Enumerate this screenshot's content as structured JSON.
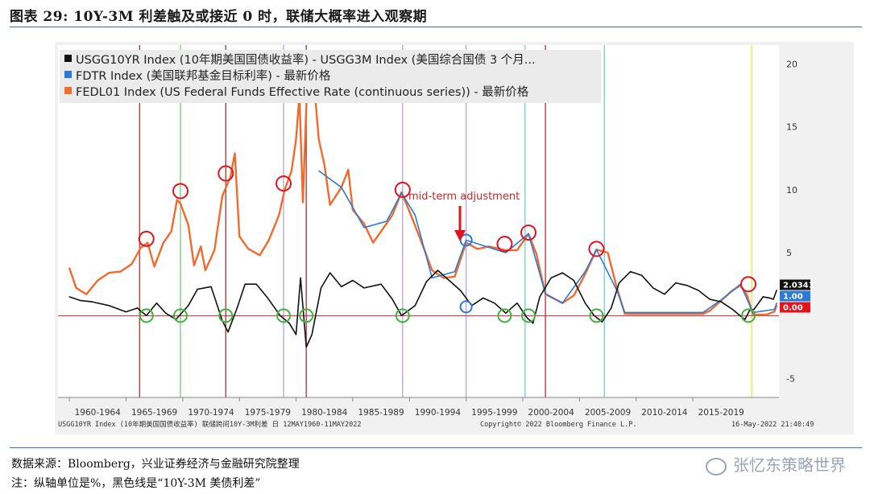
{
  "figure": {
    "title": "图表 29:    10Y-3M 利差触及或接近 0 时，联储大概率进入观察期",
    "source": "数据来源：Bloomberg，兴业证券经济与金融研究院整理",
    "note": "注：纵轴单位是%，黑色线是“10Y-3M 美债利差”",
    "watermark": "张忆东策略世界"
  },
  "chart_data": {
    "type": "line",
    "legend": [
      {
        "label": "USGG10YR Index (10年期美国国债收益率) - USGG3M Index (美国综合国债 3 个月...",
        "color": "#111111"
      },
      {
        "label": "FDTR Index (美国联邦基金目标利率) - 最新价格",
        "color": "#2b7bd6"
      },
      {
        "label": "FEDL01 Index (US Federal Funds Effective Rate (continuous series)) - 最新价格",
        "color": "#f26a2e"
      }
    ],
    "yticks": [
      20,
      15,
      10,
      5,
      -5
    ],
    "ylim": [
      -6.5,
      21.5
    ],
    "xlim": [
      1959.0,
      2022.6
    ],
    "xtick_labels": [
      "1960-1964",
      "1965-1969",
      "1970-1974",
      "1975-1979",
      "1980-1984",
      "1985-1989",
      "1990-1994",
      "1995-1999",
      "2000-2004",
      "2005-2009",
      "2010-2014",
      "2015-2019"
    ],
    "last_values": [
      {
        "text": "2.0341",
        "color": "#111111",
        "value": 2.0341
      },
      {
        "text": "1.00",
        "color": "#2b7bd6",
        "value": 1.0
      },
      {
        "text": "0.00",
        "color": "#e0141e",
        "value": 0.0
      }
    ],
    "annotation": "mid-term adjustment",
    "footer_left": "USGG10YR Index (10年期美国国债收益率) 联储跨间10Y-3M利差  日  12MAY1960-11MAY2022",
    "footer_center": "Copyright© 2022 Bloomberg Finance L.P.",
    "footer_right": "16-May-2022  21:40:49",
    "series": [
      {
        "name": "FEDL01",
        "color": "#f26a2e",
        "points": [
          [
            1960.0,
            3.8
          ],
          [
            1960.6,
            2.2
          ],
          [
            1961.5,
            1.7
          ],
          [
            1962.5,
            2.8
          ],
          [
            1963.5,
            3.4
          ],
          [
            1964.5,
            3.5
          ],
          [
            1965.5,
            4.1
          ],
          [
            1966.3,
            5.4
          ],
          [
            1966.9,
            5.8
          ],
          [
            1967.5,
            3.9
          ],
          [
            1968.3,
            5.8
          ],
          [
            1969.0,
            6.7
          ],
          [
            1969.5,
            9.2
          ],
          [
            1969.8,
            8.9
          ],
          [
            1970.5,
            7.2
          ],
          [
            1971.0,
            4.0
          ],
          [
            1971.6,
            5.5
          ],
          [
            1972.0,
            3.6
          ],
          [
            1972.8,
            5.2
          ],
          [
            1973.5,
            9.5
          ],
          [
            1974.2,
            11.0
          ],
          [
            1974.6,
            12.9
          ],
          [
            1975.0,
            6.3
          ],
          [
            1975.8,
            5.3
          ],
          [
            1976.8,
            4.8
          ],
          [
            1977.6,
            6.0
          ],
          [
            1978.5,
            8.0
          ],
          [
            1979.0,
            10.0
          ],
          [
            1979.6,
            11.5
          ],
          [
            1980.0,
            14.0
          ],
          [
            1980.3,
            17.5
          ],
          [
            1980.6,
            9.0
          ],
          [
            1981.0,
            19.0
          ],
          [
            1981.5,
            19.5
          ],
          [
            1982.0,
            14.0
          ],
          [
            1982.5,
            12.0
          ],
          [
            1983.0,
            8.8
          ],
          [
            1984.0,
            10.2
          ],
          [
            1984.6,
            11.6
          ],
          [
            1985.0,
            8.4
          ],
          [
            1986.0,
            7.3
          ],
          [
            1986.8,
            5.8
          ],
          [
            1987.5,
            6.7
          ],
          [
            1988.5,
            8.0
          ],
          [
            1989.3,
            9.8
          ],
          [
            1990.0,
            8.3
          ],
          [
            1991.0,
            6.0
          ],
          [
            1992.0,
            3.6
          ],
          [
            1993.0,
            3.0
          ],
          [
            1994.0,
            3.1
          ],
          [
            1995.0,
            5.8
          ],
          [
            1996.0,
            5.3
          ],
          [
            1997.0,
            5.5
          ],
          [
            1998.5,
            5.2
          ],
          [
            1999.5,
            5.2
          ],
          [
            2000.5,
            6.5
          ],
          [
            2001.2,
            4.9
          ],
          [
            2002.0,
            1.7
          ],
          [
            2003.5,
            1.0
          ],
          [
            2004.5,
            1.6
          ],
          [
            2005.5,
            3.3
          ],
          [
            2006.5,
            5.25
          ],
          [
            2007.5,
            5.0
          ],
          [
            2008.3,
            2.2
          ],
          [
            2009.0,
            0.15
          ],
          [
            2012.0,
            0.15
          ],
          [
            2015.9,
            0.15
          ],
          [
            2016.5,
            0.4
          ],
          [
            2017.5,
            1.2
          ],
          [
            2018.5,
            2.0
          ],
          [
            2019.2,
            2.4
          ],
          [
            2019.8,
            1.6
          ],
          [
            2020.3,
            0.08
          ],
          [
            2021.5,
            0.08
          ],
          [
            2022.2,
            0.33
          ],
          [
            2022.4,
            0.83
          ]
        ]
      },
      {
        "name": "FDTR",
        "color": "#2b7bd6",
        "points": [
          [
            1982.0,
            11.5
          ],
          [
            1984.0,
            10.2
          ],
          [
            1986.0,
            7.0
          ],
          [
            1988.0,
            7.5
          ],
          [
            1989.3,
            9.75
          ],
          [
            1990.5,
            8.0
          ],
          [
            1992.0,
            3.0
          ],
          [
            1994.0,
            3.5
          ],
          [
            1995.0,
            6.0
          ],
          [
            1998.5,
            5.0
          ],
          [
            2000.5,
            6.5
          ],
          [
            2002.0,
            1.75
          ],
          [
            2003.5,
            1.0
          ],
          [
            2005.5,
            3.5
          ],
          [
            2006.5,
            5.25
          ],
          [
            2008.3,
            2.0
          ],
          [
            2009.0,
            0.25
          ],
          [
            2015.9,
            0.25
          ],
          [
            2017.5,
            1.25
          ],
          [
            2019.2,
            2.5
          ],
          [
            2020.3,
            0.25
          ],
          [
            2022.2,
            0.5
          ],
          [
            2022.4,
            1.0
          ]
        ]
      },
      {
        "name": "USGG10YR-USGG3M",
        "color": "#111111",
        "points": [
          [
            1960.0,
            1.5
          ],
          [
            1961.0,
            1.2
          ],
          [
            1962.0,
            1.1
          ],
          [
            1963.5,
            0.8
          ],
          [
            1965.0,
            0.3
          ],
          [
            1966.0,
            0.6
          ],
          [
            1966.8,
            0.0
          ],
          [
            1967.7,
            1.0
          ],
          [
            1968.5,
            0.2
          ],
          [
            1969.4,
            -0.3
          ],
          [
            1970.5,
            0.8
          ],
          [
            1971.3,
            2.1
          ],
          [
            1972.5,
            2.3
          ],
          [
            1973.5,
            -0.4
          ],
          [
            1974.0,
            -1.3
          ],
          [
            1974.8,
            0.6
          ],
          [
            1975.5,
            2.5
          ],
          [
            1976.5,
            2.5
          ],
          [
            1977.5,
            1.4
          ],
          [
            1978.6,
            0.0
          ],
          [
            1979.4,
            -0.6
          ],
          [
            1980.0,
            -1.5
          ],
          [
            1980.4,
            3.0
          ],
          [
            1980.9,
            -2.5
          ],
          [
            1981.4,
            -1.5
          ],
          [
            1982.2,
            2.2
          ],
          [
            1983.0,
            3.4
          ],
          [
            1984.0,
            2.3
          ],
          [
            1985.0,
            2.8
          ],
          [
            1986.0,
            2.2
          ],
          [
            1987.5,
            2.5
          ],
          [
            1988.5,
            1.3
          ],
          [
            1989.3,
            0.0
          ],
          [
            1990.5,
            0.8
          ],
          [
            1991.5,
            2.7
          ],
          [
            1992.5,
            3.6
          ],
          [
            1993.5,
            2.8
          ],
          [
            1994.5,
            2.0
          ],
          [
            1995.5,
            0.8
          ],
          [
            1996.5,
            1.4
          ],
          [
            1997.5,
            1.0
          ],
          [
            1998.5,
            0.2
          ],
          [
            1999.5,
            1.0
          ],
          [
            2000.4,
            -0.2
          ],
          [
            2000.9,
            -0.6
          ],
          [
            2001.5,
            1.5
          ],
          [
            2002.5,
            3.0
          ],
          [
            2003.5,
            3.4
          ],
          [
            2004.5,
            2.8
          ],
          [
            2005.5,
            1.0
          ],
          [
            2006.3,
            0.0
          ],
          [
            2007.0,
            -0.5
          ],
          [
            2007.8,
            0.6
          ],
          [
            2008.5,
            2.6
          ],
          [
            2009.5,
            3.5
          ],
          [
            2010.5,
            3.2
          ],
          [
            2011.5,
            2.2
          ],
          [
            2012.5,
            1.7
          ],
          [
            2013.5,
            2.6
          ],
          [
            2014.5,
            2.4
          ],
          [
            2015.5,
            2.0
          ],
          [
            2016.5,
            1.3
          ],
          [
            2017.5,
            1.1
          ],
          [
            2018.5,
            0.5
          ],
          [
            2019.3,
            -0.1
          ],
          [
            2019.6,
            -0.3
          ],
          [
            2020.0,
            0.4
          ],
          [
            2020.4,
            0.5
          ],
          [
            2021.2,
            1.5
          ],
          [
            2021.8,
            1.4
          ],
          [
            2022.1,
            1.3
          ],
          [
            2022.4,
            2.03
          ]
        ]
      }
    ],
    "vertical_lines": [
      {
        "x": 1966.2,
        "color": "#b04040"
      },
      {
        "x": 1969.8,
        "color": "#7fd37f"
      },
      {
        "x": 1973.8,
        "color": "#b04040"
      },
      {
        "x": 1978.9,
        "color": "#b9a8d8"
      },
      {
        "x": 1980.9,
        "color": "#b04040"
      },
      {
        "x": 1989.4,
        "color": "#b9a8d8"
      },
      {
        "x": 1995.0,
        "color": "#b9a8d8"
      },
      {
        "x": 2000.2,
        "color": "#7fd3c8"
      },
      {
        "x": 2002.0,
        "color": "#b04040"
      },
      {
        "x": 2007.2,
        "color": "#7fd3c8"
      },
      {
        "x": 2020.2,
        "color": "#f0e050"
      }
    ],
    "red_circles": [
      [
        1966.8,
        6.1
      ],
      [
        1969.8,
        9.9
      ],
      [
        1973.8,
        11.3
      ],
      [
        1978.9,
        10.5
      ],
      [
        1980.9,
        19.8
      ],
      [
        1989.4,
        10.0
      ],
      [
        1998.4,
        5.7
      ],
      [
        2000.5,
        6.6
      ],
      [
        2006.5,
        5.3
      ],
      [
        2019.9,
        2.5
      ]
    ],
    "green_circles": [
      [
        1966.8,
        0.0
      ],
      [
        1969.8,
        0.0
      ],
      [
        1973.8,
        0.0
      ],
      [
        1978.9,
        0.0
      ],
      [
        1980.9,
        0.0
      ],
      [
        1989.4,
        0.0
      ],
      [
        1998.4,
        0.0
      ],
      [
        2000.5,
        0.0
      ],
      [
        2006.5,
        0.0
      ],
      [
        2019.9,
        0.0
      ]
    ],
    "blue_circles": [
      [
        1995.0,
        6.0
      ],
      [
        1995.0,
        0.7
      ]
    ]
  }
}
